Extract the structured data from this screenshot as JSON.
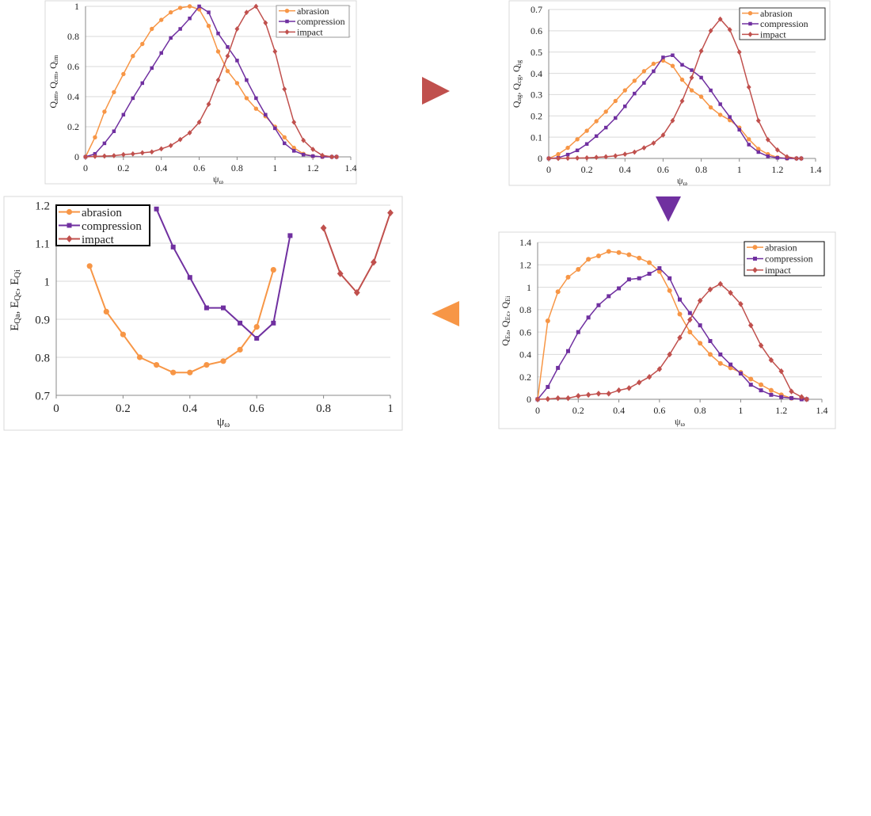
{
  "colors": {
    "abrasion": "#f79646",
    "compression": "#7030a0",
    "impact": "#c0504d"
  },
  "arrows": [
    {
      "direction": "right",
      "color": "#c0504d"
    },
    {
      "direction": "down",
      "color": "#7030a0"
    },
    {
      "direction": "left",
      "color": "#f79646"
    }
  ],
  "chart_data": [
    {
      "type": "line",
      "xlabel": {
        "base": "ψ",
        "sub": "ω"
      },
      "ylabel": [
        {
          "base": "Q",
          "sub": "am"
        },
        {
          "base": ", Q",
          "sub": "cm"
        },
        {
          "base": ", Q",
          "sub": "im"
        }
      ],
      "xlim": [
        0,
        1.4
      ],
      "ylim": [
        0,
        1
      ],
      "xticks": [
        "0",
        "0.2",
        "0.4",
        "0.6",
        "0.8",
        "1",
        "1.2",
        "1.4"
      ],
      "yticks": [
        "0",
        "0.2",
        "0.4",
        "0.6",
        "0.8",
        "1"
      ],
      "grid": true,
      "legend": "top-right",
      "x": [
        0,
        0.05,
        0.1,
        0.15,
        0.2,
        0.25,
        0.3,
        0.35,
        0.4,
        0.45,
        0.5,
        0.55,
        0.6,
        0.65,
        0.7,
        0.75,
        0.8,
        0.85,
        0.9,
        0.95,
        1,
        1.05,
        1.1,
        1.15,
        1.2,
        1.25,
        1.3,
        1.325
      ],
      "series": [
        {
          "name": "abrasion",
          "values": [
            0,
            0.13,
            0.3,
            0.43,
            0.55,
            0.67,
            0.75,
            0.85,
            0.91,
            0.96,
            0.99,
            1.0,
            0.98,
            0.87,
            0.7,
            0.57,
            0.49,
            0.39,
            0.32,
            0.27,
            0.2,
            0.13,
            0.06,
            0.02,
            0.005,
            0,
            0,
            0
          ]
        },
        {
          "name": "compression",
          "values": [
            0,
            0.02,
            0.09,
            0.17,
            0.28,
            0.39,
            0.49,
            0.59,
            0.69,
            0.79,
            0.85,
            0.92,
            1.0,
            0.96,
            0.82,
            0.73,
            0.64,
            0.51,
            0.39,
            0.28,
            0.19,
            0.09,
            0.04,
            0.015,
            0.005,
            0,
            0,
            0
          ]
        },
        {
          "name": "impact",
          "values": [
            0,
            0.003,
            0.005,
            0.008,
            0.015,
            0.02,
            0.027,
            0.033,
            0.053,
            0.075,
            0.115,
            0.16,
            0.23,
            0.35,
            0.51,
            0.67,
            0.85,
            0.96,
            1.0,
            0.89,
            0.7,
            0.45,
            0.23,
            0.11,
            0.05,
            0.01,
            0,
            0
          ]
        }
      ]
    },
    {
      "type": "line",
      "xlabel": {
        "base": "ψ",
        "sub": "ω"
      },
      "ylabel": [
        {
          "base": "Q",
          "sub": "ag"
        },
        {
          "base": ", Q",
          "sub": "cg"
        },
        {
          "base": ", Q",
          "sub": "ig"
        }
      ],
      "xlim": [
        0,
        1.4
      ],
      "ylim": [
        0,
        0.7
      ],
      "xticks": [
        "0",
        "0.2",
        "0.4",
        "0.6",
        "0.8",
        "1",
        "1.2",
        "1.4"
      ],
      "yticks": [
        "0",
        "0.1",
        "0.2",
        "0.3",
        "0.4",
        "0.5",
        "0.6",
        "0.7"
      ],
      "grid": true,
      "legend": "top-right",
      "x": [
        0,
        0.05,
        0.1,
        0.15,
        0.2,
        0.25,
        0.3,
        0.35,
        0.4,
        0.45,
        0.5,
        0.55,
        0.6,
        0.65,
        0.7,
        0.75,
        0.8,
        0.85,
        0.9,
        0.95,
        1,
        1.05,
        1.1,
        1.15,
        1.2,
        1.25,
        1.3,
        1.325
      ],
      "series": [
        {
          "name": "abrasion",
          "values": [
            0,
            0.02,
            0.05,
            0.09,
            0.13,
            0.175,
            0.22,
            0.27,
            0.32,
            0.365,
            0.41,
            0.445,
            0.46,
            0.435,
            0.37,
            0.32,
            0.29,
            0.24,
            0.205,
            0.18,
            0.145,
            0.09,
            0.045,
            0.02,
            0.005,
            0,
            0,
            0
          ]
        },
        {
          "name": "compression",
          "values": [
            0,
            0.003,
            0.018,
            0.038,
            0.068,
            0.105,
            0.145,
            0.19,
            0.245,
            0.305,
            0.355,
            0.41,
            0.475,
            0.485,
            0.44,
            0.415,
            0.38,
            0.32,
            0.255,
            0.195,
            0.135,
            0.065,
            0.03,
            0.01,
            0.003,
            0,
            0,
            0
          ]
        },
        {
          "name": "impact",
          "values": [
            0,
            0,
            0.001,
            0.002,
            0.003,
            0.005,
            0.008,
            0.012,
            0.02,
            0.03,
            0.05,
            0.072,
            0.11,
            0.178,
            0.27,
            0.38,
            0.505,
            0.6,
            0.655,
            0.605,
            0.5,
            0.335,
            0.178,
            0.088,
            0.04,
            0.008,
            0,
            0
          ]
        }
      ]
    },
    {
      "type": "line",
      "xlabel": {
        "base": "ψ",
        "sub": "ω"
      },
      "ylabel": [
        {
          "base": "E",
          "sub": "Qa"
        },
        {
          "base": ", E",
          "sub": "Qc"
        },
        {
          "base": ", E",
          "sub": "Qi"
        }
      ],
      "xlim": [
        0,
        1
      ],
      "ylim": [
        0.7,
        1.2
      ],
      "xticks": [
        "0",
        "0.2",
        "0.4",
        "0.6",
        "0.8",
        "1"
      ],
      "yticks": [
        "0.7",
        "0.8",
        "0.9",
        "1",
        "1.1",
        "1.2"
      ],
      "grid": true,
      "legend": "top-left",
      "series": [
        {
          "name": "abrasion",
          "x": [
            0.1,
            0.15,
            0.2,
            0.25,
            0.3,
            0.35,
            0.4,
            0.45,
            0.5,
            0.55,
            0.6,
            0.65
          ],
          "values": [
            1.04,
            0.92,
            0.86,
            0.8,
            0.78,
            0.76,
            0.76,
            0.78,
            0.79,
            0.82,
            0.88,
            1.03
          ]
        },
        {
          "name": "compression",
          "x": [
            0.3,
            0.35,
            0.4,
            0.45,
            0.5,
            0.55,
            0.6,
            0.65,
            0.7
          ],
          "values": [
            1.19,
            1.09,
            1.01,
            0.93,
            0.93,
            0.89,
            0.85,
            0.89,
            1.12
          ]
        },
        {
          "name": "impact",
          "x": [
            0.8,
            0.85,
            0.9,
            0.95,
            1.0
          ],
          "values": [
            1.14,
            1.02,
            0.97,
            1.05,
            1.18
          ]
        }
      ]
    },
    {
      "type": "line",
      "xlabel": {
        "base": "ψ",
        "sub": "ω"
      },
      "ylabel": [
        {
          "base": "Q",
          "sub": "Ea"
        },
        {
          "base": ", Q",
          "sub": "Ec"
        },
        {
          "base": ", Q",
          "sub": "Ei"
        }
      ],
      "xlim": [
        0,
        1.4
      ],
      "ylim": [
        0,
        1.4
      ],
      "xticks": [
        "0",
        "0.2",
        "0.4",
        "0.6",
        "0.8",
        "1",
        "1.2",
        "1.4"
      ],
      "yticks": [
        "0",
        "0.2",
        "0.4",
        "0.6",
        "0.8",
        "1",
        "1.2",
        "1.4"
      ],
      "grid": true,
      "legend": "top-right",
      "x": [
        0,
        0.05,
        0.1,
        0.15,
        0.2,
        0.25,
        0.3,
        0.35,
        0.4,
        0.45,
        0.5,
        0.55,
        0.6,
        0.65,
        0.7,
        0.75,
        0.8,
        0.85,
        0.9,
        0.95,
        1,
        1.05,
        1.1,
        1.15,
        1.2,
        1.25,
        1.3,
        1.325
      ],
      "series": [
        {
          "name": "abrasion",
          "values": [
            0,
            0.7,
            0.96,
            1.09,
            1.16,
            1.25,
            1.28,
            1.32,
            1.31,
            1.29,
            1.26,
            1.22,
            1.14,
            0.97,
            0.76,
            0.6,
            0.5,
            0.4,
            0.32,
            0.28,
            0.24,
            0.18,
            0.13,
            0.08,
            0.04,
            0.01,
            0.003,
            0
          ]
        },
        {
          "name": "compression",
          "values": [
            0,
            0.11,
            0.28,
            0.43,
            0.6,
            0.73,
            0.84,
            0.92,
            0.99,
            1.07,
            1.08,
            1.12,
            1.17,
            1.08,
            0.89,
            0.77,
            0.66,
            0.52,
            0.4,
            0.31,
            0.23,
            0.13,
            0.08,
            0.04,
            0.02,
            0.01,
            0,
            0
          ]
        },
        {
          "name": "impact",
          "values": [
            0,
            0.003,
            0.01,
            0.01,
            0.03,
            0.04,
            0.05,
            0.05,
            0.08,
            0.1,
            0.15,
            0.2,
            0.27,
            0.4,
            0.55,
            0.71,
            0.88,
            0.98,
            1.03,
            0.95,
            0.85,
            0.66,
            0.48,
            0.35,
            0.25,
            0.07,
            0.02,
            0
          ]
        }
      ]
    }
  ]
}
